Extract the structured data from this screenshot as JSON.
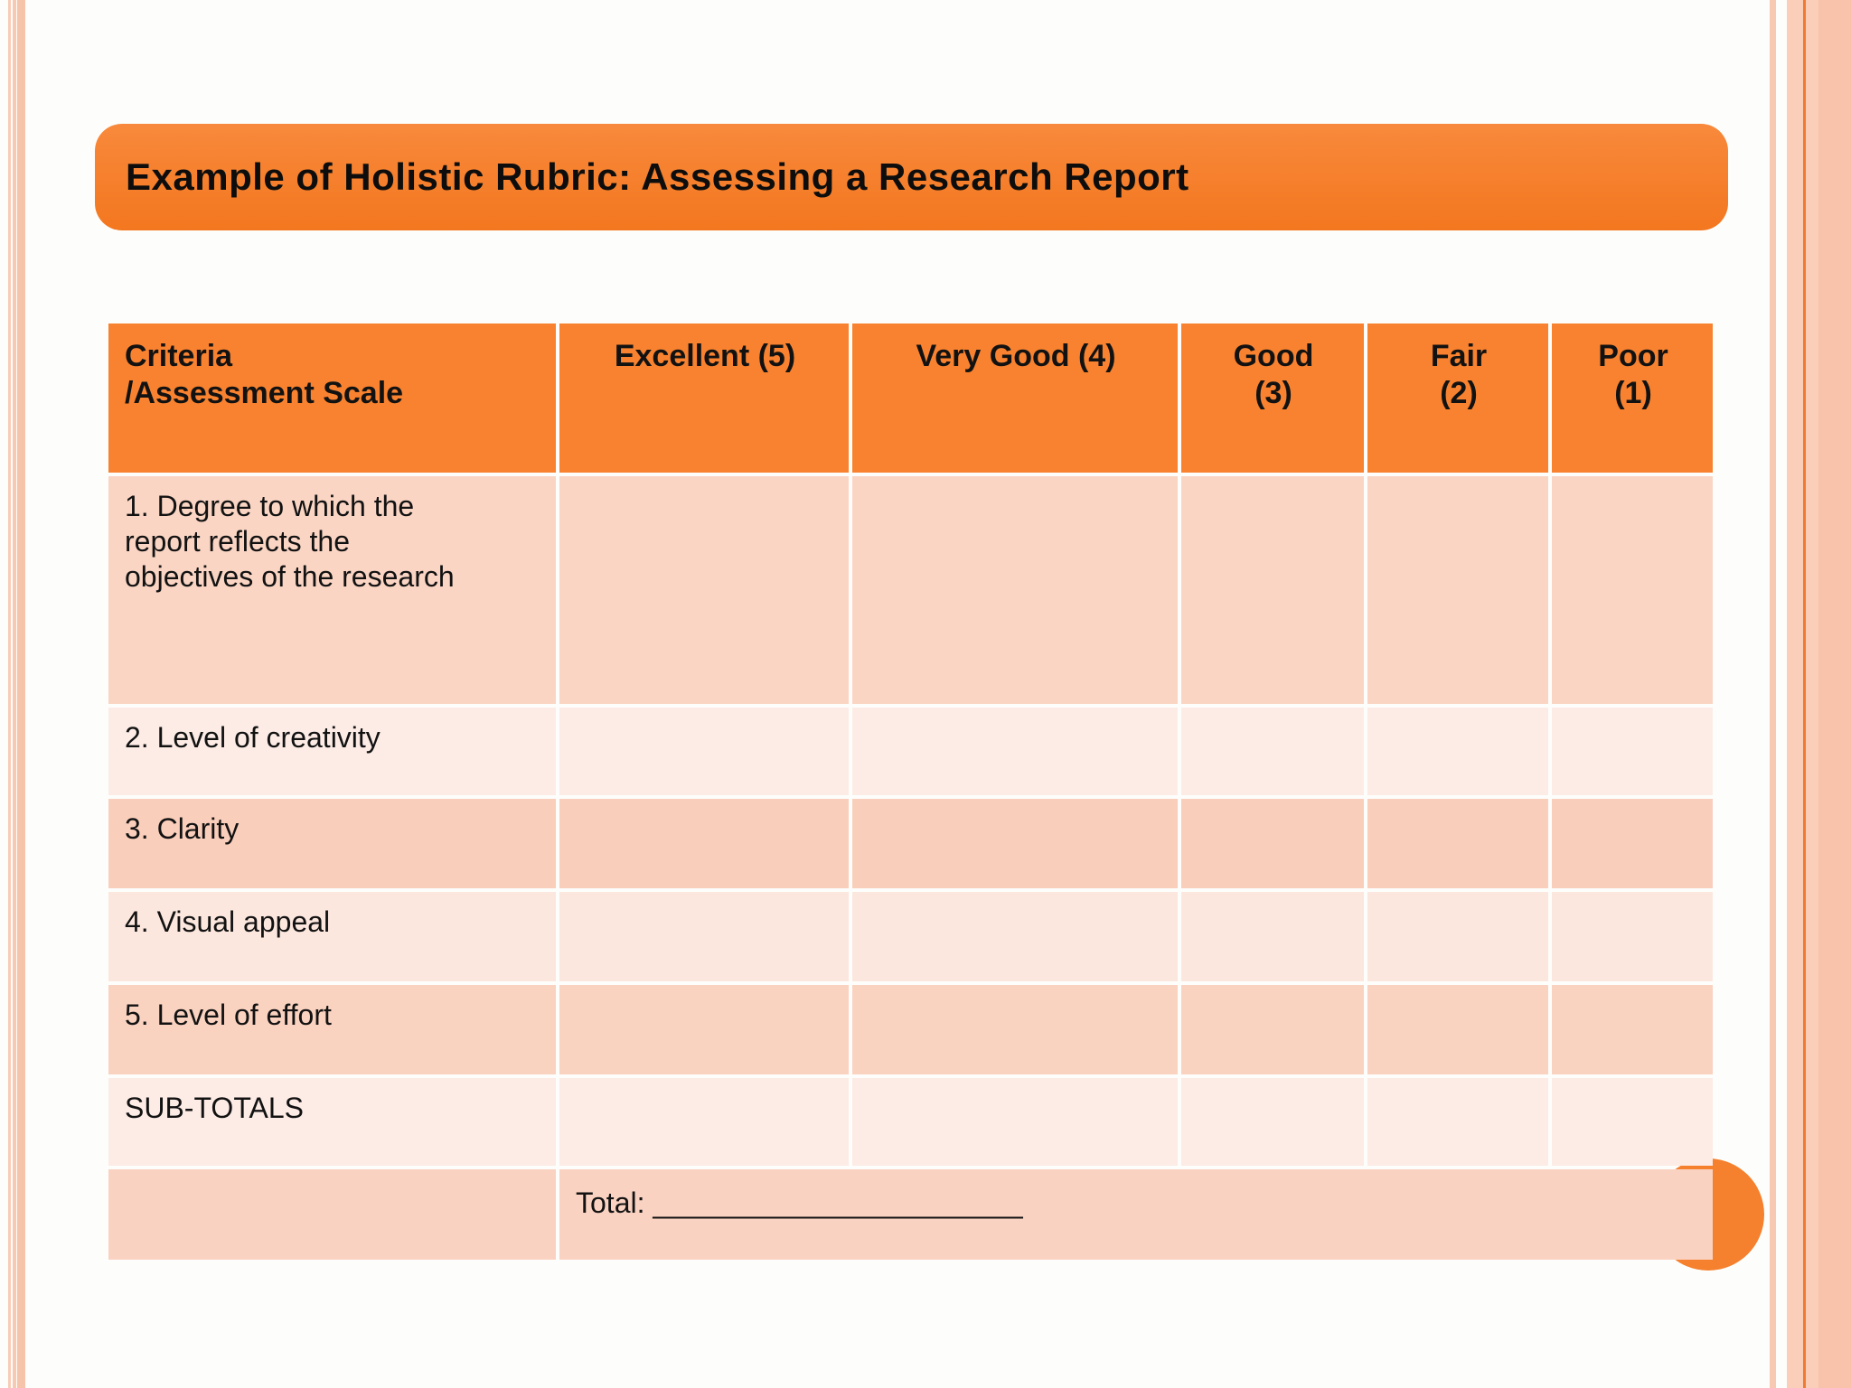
{
  "title": "Example of Holistic Rubric: Assessing a Research Report",
  "table": {
    "headers": [
      "Criteria\n/Assessment Scale",
      "Excellent (5)",
      "Very Good (4)",
      "Good\n(3)",
      "Fair\n(2)",
      "Poor\n(1)"
    ],
    "rows": [
      {
        "label": "1. Degree to which the\nreport reflects the\nobjectives of the research"
      },
      {
        "label": "2. Level of creativity"
      },
      {
        "label": "3. Clarity"
      },
      {
        "label": "4. Visual appeal"
      },
      {
        "label": "5. Level of effort"
      },
      {
        "label": "SUB-TOTALS"
      }
    ],
    "total_label": "Total: ",
    "total_blank": "_______________________"
  },
  "colors": {
    "accent_orange": "#F8822F",
    "title_orange": "#F3771F",
    "circle_orange": "#F5802E",
    "row_pink_medium": "#FAD5C4",
    "row_pink_light": "#FDECE6",
    "row_pink_dark": "#F9CEBB",
    "stripe_peach": "#F6C3AB",
    "text_black": "#121212"
  }
}
